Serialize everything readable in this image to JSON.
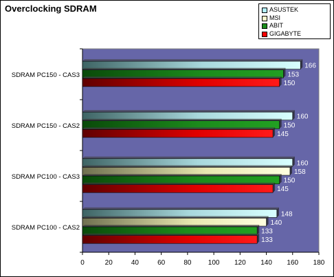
{
  "chart_data": {
    "type": "bar",
    "orientation": "horizontal",
    "title": "Overclocking SDRAM",
    "categories": [
      "SDRAM PC150 - CAS3",
      "SDRAM PC150 - CAS2",
      "SDRAM PC100 - CAS3",
      "SDRAM PC100 - CAS2"
    ],
    "series": [
      {
        "name": "ASUSTEK",
        "color": "#b3f0ff",
        "values": [
          166,
          160,
          160,
          148
        ]
      },
      {
        "name": "MSI",
        "color": "#ffffcc",
        "values": [
          null,
          null,
          158,
          140
        ]
      },
      {
        "name": "ABIT",
        "color": "#1a8c1a",
        "values": [
          153,
          150,
          150,
          133
        ]
      },
      {
        "name": "GIGABYTE",
        "color": "#ff0000",
        "values": [
          150,
          145,
          145,
          133
        ]
      }
    ],
    "xlim": [
      0,
      180
    ],
    "xticks": [
      0,
      20,
      40,
      60,
      80,
      100,
      120,
      140,
      160,
      180
    ],
    "plot_background": "#6666a8",
    "legend_position": "top-right",
    "grid": false
  }
}
